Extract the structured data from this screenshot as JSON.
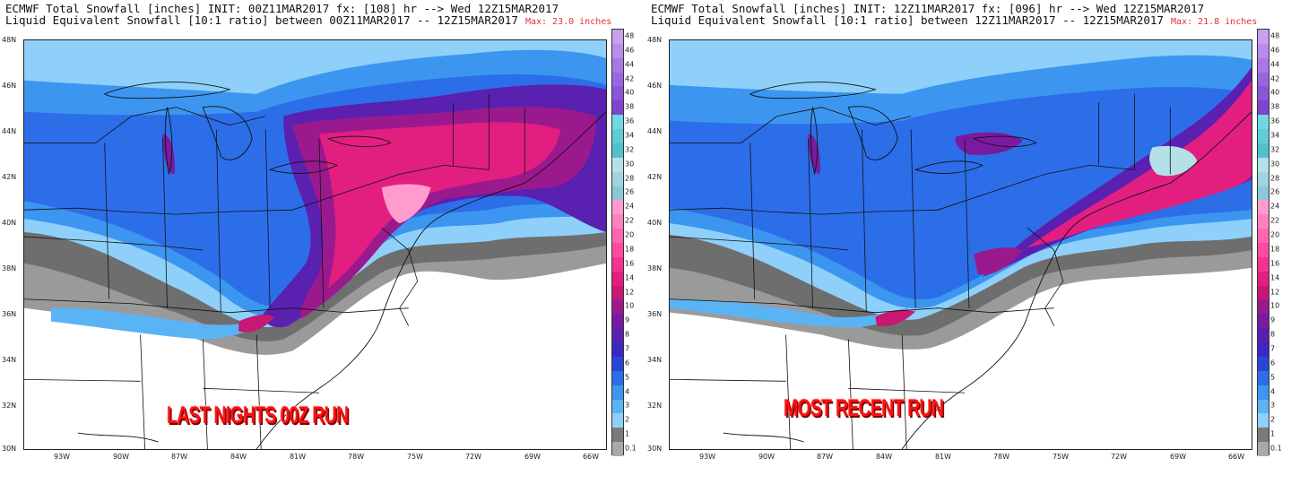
{
  "panels": [
    {
      "header_line1": "ECMWF Total Snowfall [inches] INIT: 00Z11MAR2017 fx: [108] hr --> Wed 12Z15MAR2017",
      "header_line2": "Liquid Equivalent Snowfall [10:1 ratio] between 00Z11MAR2017 -- 12Z15MAR2017",
      "max_label": "Max: 23.0 inches",
      "overlay_text": "LAST NIGHTS 00Z RUN"
    },
    {
      "header_line1": "ECMWF Total Snowfall [inches] INIT: 12Z11MAR2017 fx: [096] hr --> Wed 12Z15MAR2017",
      "header_line2": "Liquid Equivalent Snowfall [10:1 ratio] between 12Z11MAR2017 -- 12Z15MAR2017",
      "max_label": "Max: 21.8 inches",
      "overlay_text": "MOST RECENT RUN"
    }
  ],
  "latitude_labels": [
    "48N",
    "46N",
    "44N",
    "42N",
    "40N",
    "38N",
    "36N",
    "34N",
    "32N",
    "30N"
  ],
  "longitude_labels": [
    "93W",
    "90W",
    "87W",
    "84W",
    "81W",
    "78W",
    "75W",
    "72W",
    "69W",
    "66W"
  ],
  "colorbar_labels": [
    "48",
    "46",
    "44",
    "42",
    "40",
    "38",
    "36",
    "34",
    "32",
    "30",
    "28",
    "26",
    "24",
    "22",
    "20",
    "18",
    "16",
    "14",
    "12",
    "10",
    "9",
    "8",
    "7",
    "6",
    "5",
    "4",
    "3",
    "2",
    "1",
    "0.1"
  ],
  "colorbar_colors": [
    "#c8a0f0",
    "#b98cec",
    "#a878e6",
    "#9a66df",
    "#8c55d8",
    "#7e46d0",
    "#70d8e0",
    "#60ccd6",
    "#54c0cc",
    "#b4e0e8",
    "#9fd4e0",
    "#8ac8d8",
    "#ff9ccd",
    "#ff82bf",
    "#ff66b0",
    "#ff4aa0",
    "#f23390",
    "#e21f80",
    "#c81874",
    "#9a1a8e",
    "#7a1aa0",
    "#5a20b0",
    "#3c28c0",
    "#2a46d8",
    "#2c6ee8",
    "#3c96f0",
    "#5ab4f4",
    "#8ed0fa",
    "#7a7a7a",
    "#a9a9a9"
  ]
}
